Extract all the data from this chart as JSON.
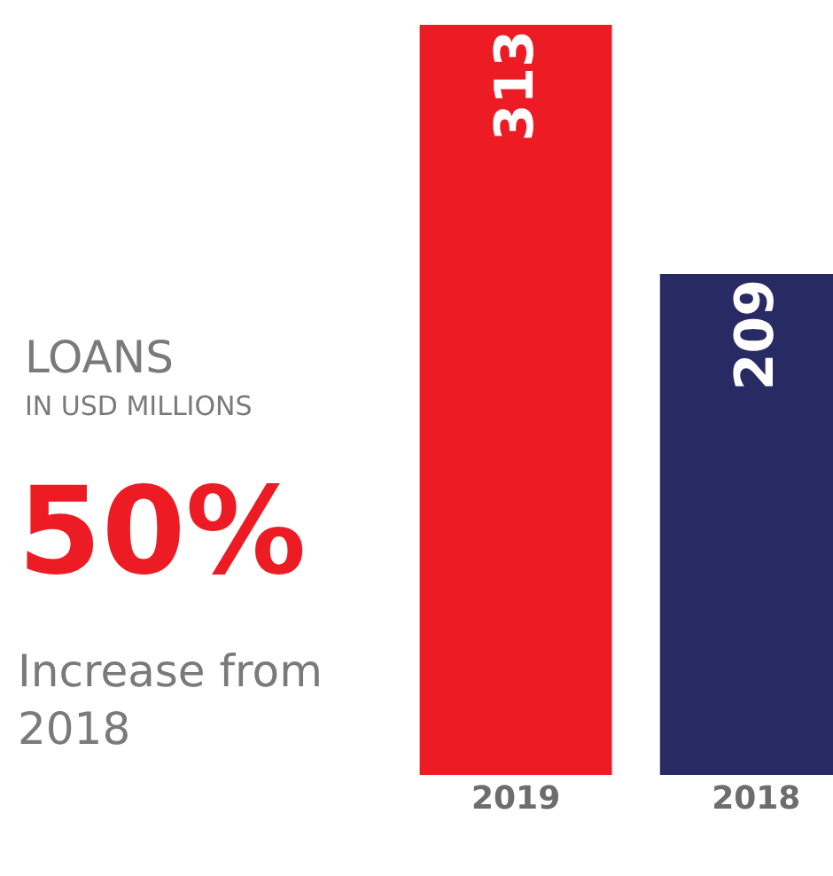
{
  "chart_data": {
    "type": "bar",
    "title": "LOANS",
    "subtitle": "IN USD MILLIONS",
    "categories": [
      "2019",
      "2018"
    ],
    "values": [
      313,
      209
    ],
    "colors": [
      "#ed1c24",
      "#282a63"
    ],
    "data_labels": true,
    "legend": false,
    "annotations": [
      "50%",
      "Increase from\n2018"
    ]
  }
}
